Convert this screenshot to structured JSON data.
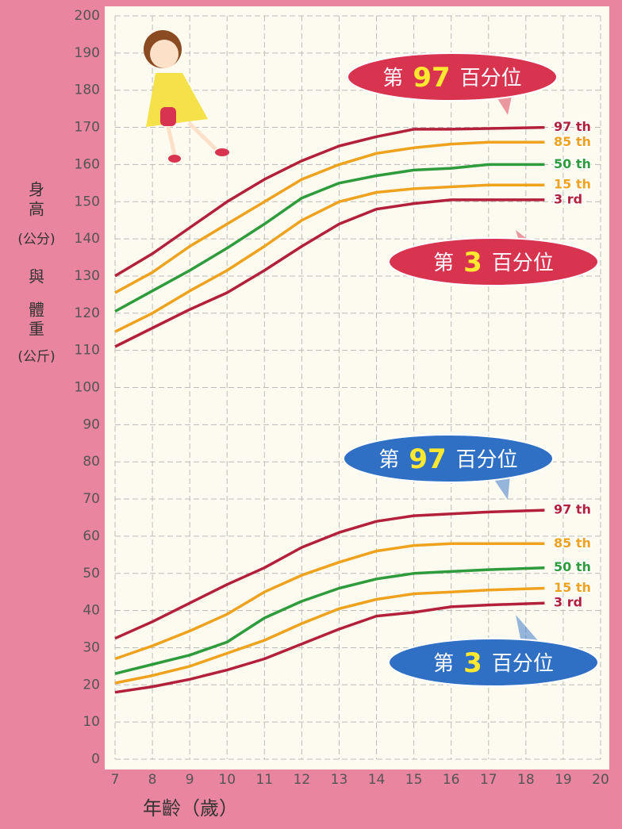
{
  "chart_data": {
    "type": "line",
    "y_label_lines": [
      "身",
      "高",
      "(公分)",
      "與",
      "體",
      "重",
      "(公斤)"
    ],
    "x_label": "年齡（歲）",
    "xlim": [
      7,
      20
    ],
    "xticks": [
      7,
      8,
      9,
      10,
      11,
      12,
      13,
      14,
      15,
      16,
      17,
      18,
      19,
      20
    ],
    "ylim": [
      0,
      200
    ],
    "yticks": [
      0,
      10,
      20,
      30,
      40,
      50,
      60,
      70,
      80,
      90,
      100,
      110,
      120,
      130,
      140,
      150,
      160,
      170,
      180,
      190,
      200
    ],
    "grid": true,
    "x": [
      7,
      8,
      9,
      10,
      11,
      12,
      13,
      14,
      15,
      16,
      17,
      18.5
    ],
    "series": [
      {
        "name": "97 th",
        "color": "#b2203c",
        "values": [
          130,
          136,
          143,
          150,
          156,
          161,
          165,
          167.5,
          169.5,
          169.5,
          169.7,
          170
        ]
      },
      {
        "name": "85 th",
        "color": "#eea21e",
        "values": [
          125.5,
          131,
          138,
          144,
          150,
          156,
          160,
          163,
          164.5,
          165.5,
          166,
          166
        ]
      },
      {
        "name": "50 th",
        "color": "#2e9b3c",
        "values": [
          120.5,
          126,
          131.5,
          137.5,
          144,
          151,
          155,
          157,
          158.5,
          159,
          160,
          160
        ]
      },
      {
        "name": "15 th",
        "color": "#eea21e",
        "values": [
          115,
          120,
          126,
          131.5,
          138,
          145,
          150,
          152.5,
          153.5,
          154,
          154.5,
          154.5
        ]
      },
      {
        "name": "3 rd",
        "color": "#b2203c",
        "values": [
          111,
          116,
          121,
          125.5,
          131.5,
          138,
          144,
          148,
          149.5,
          150.5,
          150.5,
          150.5
        ]
      },
      {
        "name": "97 th",
        "color": "#b2203c",
        "values": [
          32.5,
          37,
          42,
          47,
          51.5,
          57,
          61,
          64,
          65.5,
          66,
          66.5,
          67
        ]
      },
      {
        "name": "85 th",
        "color": "#eea21e",
        "values": [
          27,
          30.5,
          34.5,
          39,
          45,
          49.5,
          53,
          56,
          57.5,
          58,
          58,
          58
        ]
      },
      {
        "name": "50 th",
        "color": "#2e9b3c",
        "values": [
          23,
          25.5,
          28,
          31.5,
          38,
          42.5,
          46,
          48.5,
          50,
          50.5,
          51,
          51.5
        ]
      },
      {
        "name": "15 th",
        "color": "#eea21e",
        "values": [
          20.5,
          22.5,
          25,
          28.5,
          32,
          36.5,
          40.5,
          43,
          44.5,
          45,
          45.5,
          46
        ]
      },
      {
        "name": "3 rd",
        "color": "#b2203c",
        "values": [
          18,
          19.5,
          21.5,
          24,
          27,
          31,
          35,
          38.5,
          39.5,
          41,
          41.5,
          42
        ]
      }
    ],
    "annotations": [
      {
        "parts": [
          "第",
          "97",
          "百分位"
        ],
        "color": "#d8334f"
      },
      {
        "parts": [
          "第",
          "3",
          "百分位"
        ],
        "color": "#d8334f"
      },
      {
        "parts": [
          "第",
          "97",
          "百分位"
        ],
        "color": "#2f6fc4"
      },
      {
        "parts": [
          "第",
          "3",
          "百分位"
        ],
        "color": "#2f6fc4"
      }
    ]
  }
}
